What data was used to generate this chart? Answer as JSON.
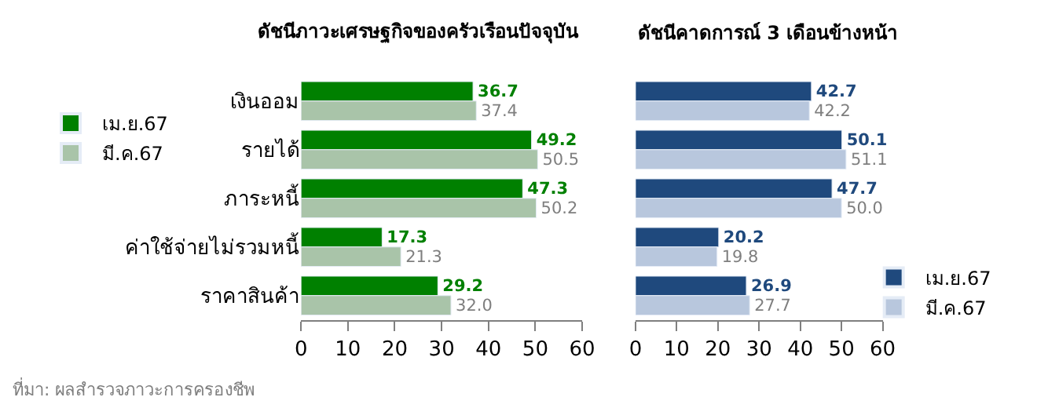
{
  "chart_data": [
    {
      "type": "bar",
      "orientation": "horizontal",
      "title": "ดัชนีภาวะเศรษฐกิจของครัวเรือนปัจจุบัน",
      "categories": [
        "เงินออม",
        "รายได้",
        "ภาระหนี้",
        "ค่าใช้จ่ายไม่รวมหนี้",
        "ราคาสินค้า"
      ],
      "series": [
        {
          "name": "เม.ย.67",
          "color": "#008000",
          "values": [
            36.7,
            49.2,
            47.3,
            17.3,
            29.2
          ],
          "value_labels": [
            "36.7",
            "49.2",
            "47.3",
            "17.3",
            "29.2"
          ]
        },
        {
          "name": "มี.ค.67",
          "color": "#a9c4a9",
          "values": [
            37.4,
            50.5,
            50.2,
            21.3,
            32.0
          ],
          "value_labels": [
            "37.4",
            "50.5",
            "50.2",
            "21.3",
            "32.0"
          ]
        }
      ],
      "xlim": [
        0,
        60
      ],
      "xticks": [
        0,
        10,
        20,
        30,
        40,
        50,
        60
      ],
      "legend": "left",
      "annotations": [
        "ที่มา: ผลสำรวจภาวะการครองชีพ"
      ]
    },
    {
      "type": "bar",
      "orientation": "horizontal",
      "title": "ดัชนีคาดการณ์ 3 เดือนข้างหน้า",
      "categories": [
        "เงินออม",
        "รายได้",
        "ภาระหนี้",
        "ค่าใช้จ่ายไม่รวมหนี้",
        "ราคาสินค้า"
      ],
      "series": [
        {
          "name": "เม.ย.67",
          "color": "#1f497d",
          "values": [
            42.7,
            50.1,
            47.7,
            20.2,
            26.9
          ],
          "value_labels": [
            "42.7",
            "50.1",
            "47.7",
            "20.2",
            "26.9"
          ]
        },
        {
          "name": "มี.ค.67",
          "color": "#b8c7dd",
          "values": [
            42.2,
            51.1,
            50.0,
            19.8,
            27.7
          ],
          "value_labels": [
            "42.2",
            "51.1",
            "50.0",
            "19.8",
            "27.7"
          ]
        }
      ],
      "xlim": [
        0,
        60
      ],
      "xticks": [
        0,
        10,
        20,
        30,
        40,
        50,
        60
      ],
      "legend": "bottom right",
      "tick_labels": "x"
    }
  ]
}
